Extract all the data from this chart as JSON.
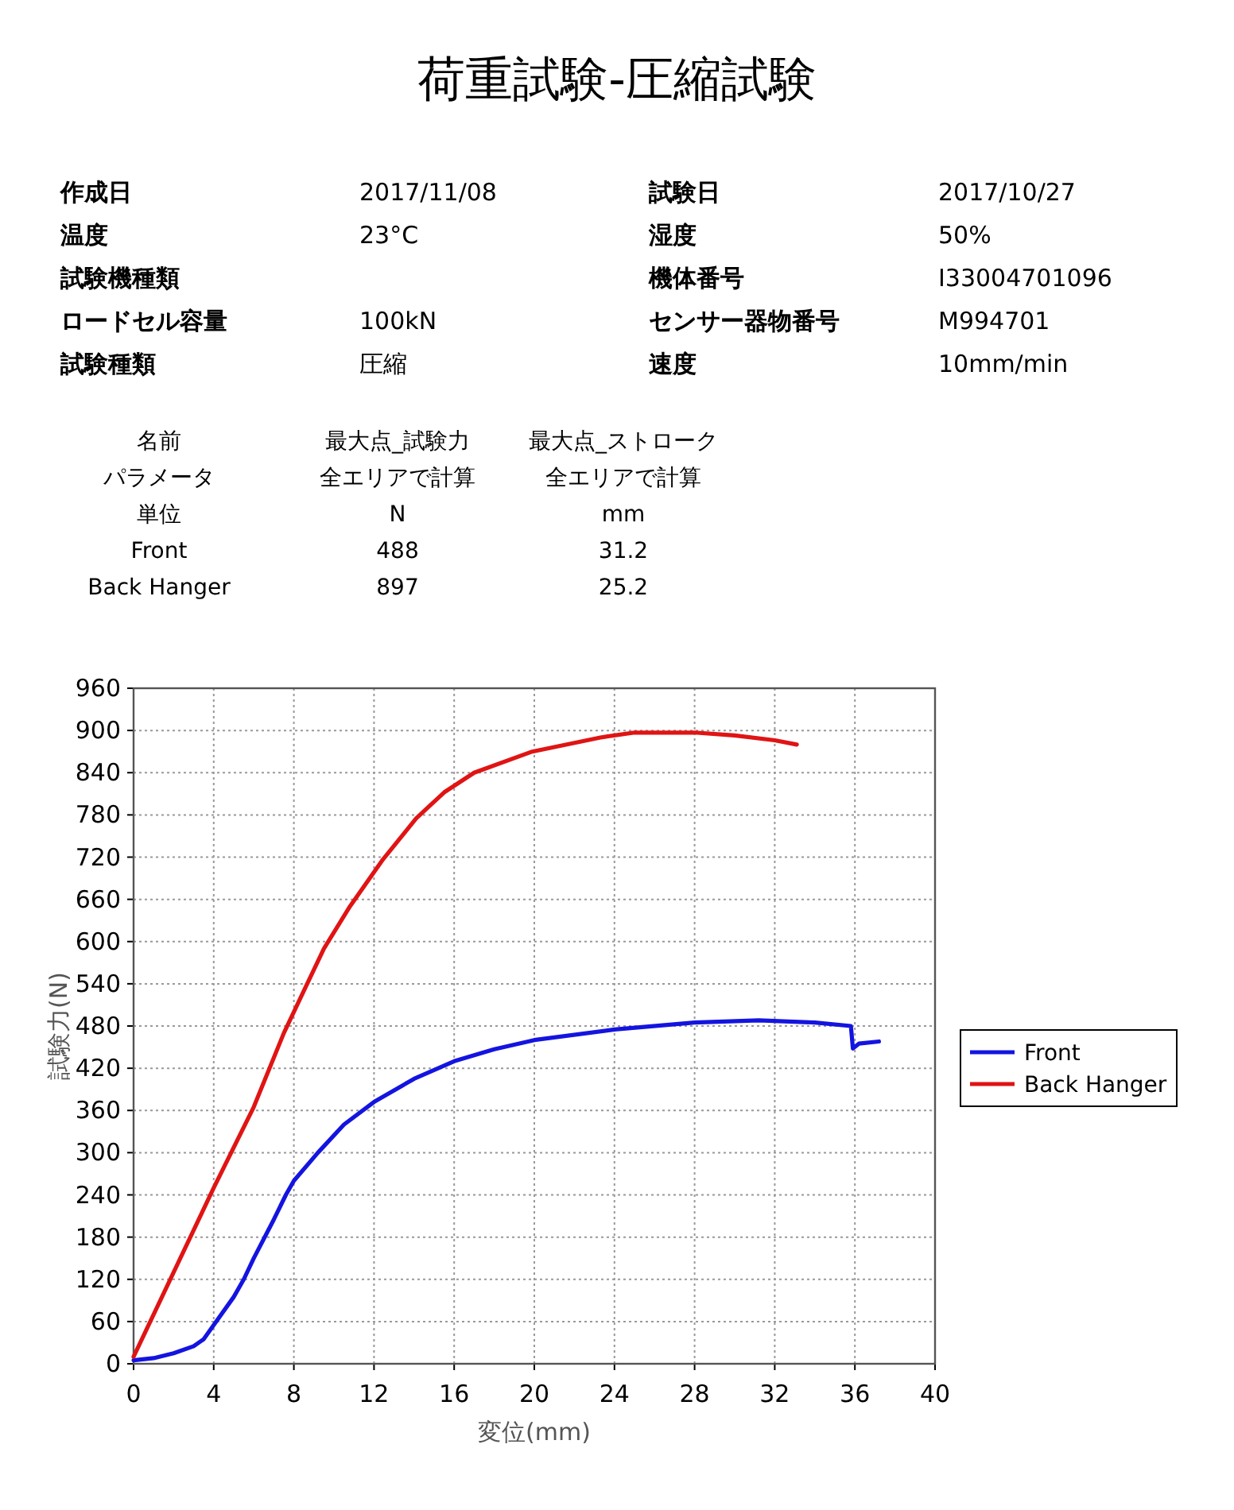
{
  "chart_data": {
    "type": "line",
    "title": "荷重試験-圧縮試験",
    "annotations": [
      "作成日\t2017/11/08\t試験日\t2017/10/27",
      "温度\t23°C\t湿度\t50%",
      "試験機種類\t\t機体番号\tI33004701096",
      "ロードセル容量\t100kN\tセンサー器物番号\tM994701",
      "試験種類\t圧縮\t速度\t10mm/min",
      "名前\t最大点_試験力\t最大点_ストローク",
      "パラメータ\t全エリアで計算\t全エリアで計算",
      "単位\tN\tmm",
      "Front\t488\t31.2",
      "Back Hanger\t897\t25.2"
    ],
    "xlabel": "変位(mm)",
    "ylabel": "試験力(N)",
    "xlim": [
      0,
      40
    ],
    "ylim": [
      0,
      960
    ],
    "xticks": [
      0,
      4,
      8,
      12,
      16,
      20,
      24,
      28,
      32,
      36,
      40
    ],
    "yticks": [
      0,
      60,
      120,
      180,
      240,
      300,
      360,
      420,
      480,
      540,
      600,
      660,
      720,
      780,
      840,
      900,
      960
    ],
    "grid": true,
    "legend": "right",
    "series": [
      {
        "name": "Front",
        "color": "#1414e0",
        "x": [
          0,
          1,
          2,
          3,
          3.5,
          4,
          5,
          5.5,
          6,
          7,
          7.6,
          8,
          9.2,
          10.5,
          12,
          14,
          16,
          18,
          20,
          24,
          28,
          31.2,
          34,
          35.8,
          35.9,
          36.2,
          37.2
        ],
        "values": [
          5,
          8,
          15,
          25,
          35,
          55,
          95,
          120,
          150,
          205,
          240,
          260,
          300,
          340,
          372,
          405,
          430,
          447,
          460,
          475,
          485,
          488,
          485,
          480,
          448,
          455,
          458
        ]
      },
      {
        "name": "Back Hanger",
        "color": "#e01414",
        "x": [
          0,
          2,
          4,
          6,
          7.5,
          8.5,
          9.5,
          10.8,
          12.4,
          14.1,
          15.5,
          17,
          19.9,
          23.3,
          25,
          28,
          30,
          32,
          33.1
        ],
        "values": [
          10,
          130,
          250,
          365,
          470,
          530,
          590,
          650,
          715,
          775,
          812,
          840,
          870,
          890,
          897,
          897,
          893,
          886,
          880
        ]
      }
    ]
  }
}
